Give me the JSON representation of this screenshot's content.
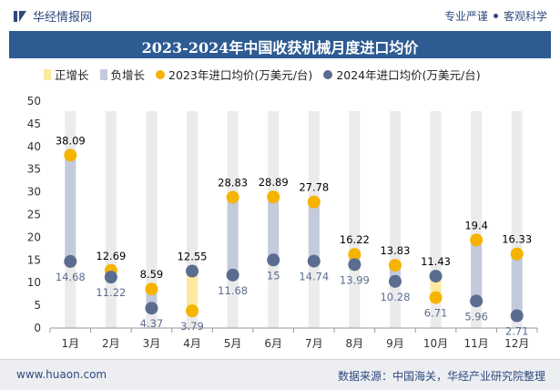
{
  "brand": {
    "name": "华经情报网"
  },
  "tagline": {
    "left": "专业严谨",
    "right": "客观科学"
  },
  "footer": {
    "site": "www.huaon.com",
    "source": "数据来源：中国海关，华经产业研究院整理"
  },
  "colors": {
    "title_bg": "#2d5b92",
    "pos_bar": "#fde9a0",
    "neg_bar": "#c2cadb",
    "s2023": "#f5b400",
    "s2024": "#5b6c91",
    "grid_col": "#ebebeb"
  },
  "chart_data": {
    "type": "dumbbell",
    "title": "2023-2024年中国收获机械月度进口均价",
    "legend": [
      "正增长",
      "负增长",
      "2023年进口均价(万美元/台)",
      "2024年进口均价(万美元/台)"
    ],
    "categories": [
      "1月",
      "2月",
      "3月",
      "4月",
      "5月",
      "6月",
      "7月",
      "8月",
      "9月",
      "10月",
      "11月",
      "12月"
    ],
    "series": [
      {
        "name": "2023年进口均价(万美元/台)",
        "values": [
          38.09,
          12.69,
          8.59,
          3.79,
          28.83,
          28.89,
          27.78,
          16.22,
          13.83,
          6.71,
          19.4,
          16.33
        ]
      },
      {
        "name": "2024年进口均价(万美元/台)",
        "values": [
          14.68,
          11.22,
          4.37,
          12.55,
          11.68,
          15,
          14.74,
          13.99,
          10.28,
          11.43,
          5.96,
          2.71
        ]
      }
    ],
    "ylim": [
      0,
      50
    ],
    "yticks": [
      0,
      5,
      10,
      15,
      20,
      25,
      30,
      35,
      40,
      45,
      50
    ],
    "xlabel": "",
    "ylabel": ""
  }
}
